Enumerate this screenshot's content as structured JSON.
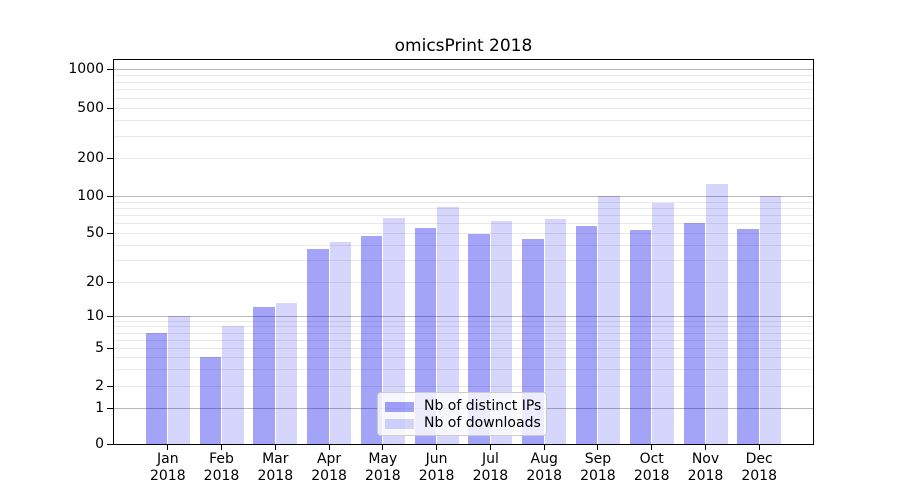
{
  "title": "omicsPrint 2018",
  "colors": {
    "ips_bar": "rgba(0,0,235,0.36)",
    "downloads_bar": "rgba(0,0,235,0.16)",
    "major_grid": "#b8b8b8",
    "minor_grid": "#e9e9e9",
    "axis": "#000000"
  },
  "legend": {
    "items": [
      {
        "label": "Nb of distinct IPs",
        "color_key": "ips_bar"
      },
      {
        "label": "Nb of downloads",
        "color_key": "downloads_bar"
      }
    ]
  },
  "chart_data": {
    "type": "bar",
    "title": "omicsPrint 2018",
    "categories": [
      "Jan 2018",
      "Feb 2018",
      "Mar 2018",
      "Apr 2018",
      "May 2018",
      "Jun 2018",
      "Jul 2018",
      "Aug 2018",
      "Sep 2018",
      "Oct 2018",
      "Nov 2018",
      "Dec 2018"
    ],
    "series": [
      {
        "name": "Nb of distinct IPs",
        "values": [
          7,
          4,
          12,
          37,
          47,
          55,
          49,
          45,
          57,
          53,
          60,
          54
        ]
      },
      {
        "name": "Nb of downloads",
        "values": [
          10,
          8,
          13,
          42,
          66,
          81,
          63,
          65,
          100,
          88,
          124,
          100
        ]
      }
    ],
    "xlabel": "",
    "ylabel": "",
    "yscale": "log-like with zero baseline",
    "yticks": [
      0,
      1,
      2,
      5,
      10,
      20,
      50,
      100,
      200,
      500,
      1000
    ],
    "ylim": [
      0,
      1150
    ],
    "grid": "horizontal: dark major lines at 1,10,100,1000; faint minor log lines",
    "legend_position": "inside lower-center"
  }
}
